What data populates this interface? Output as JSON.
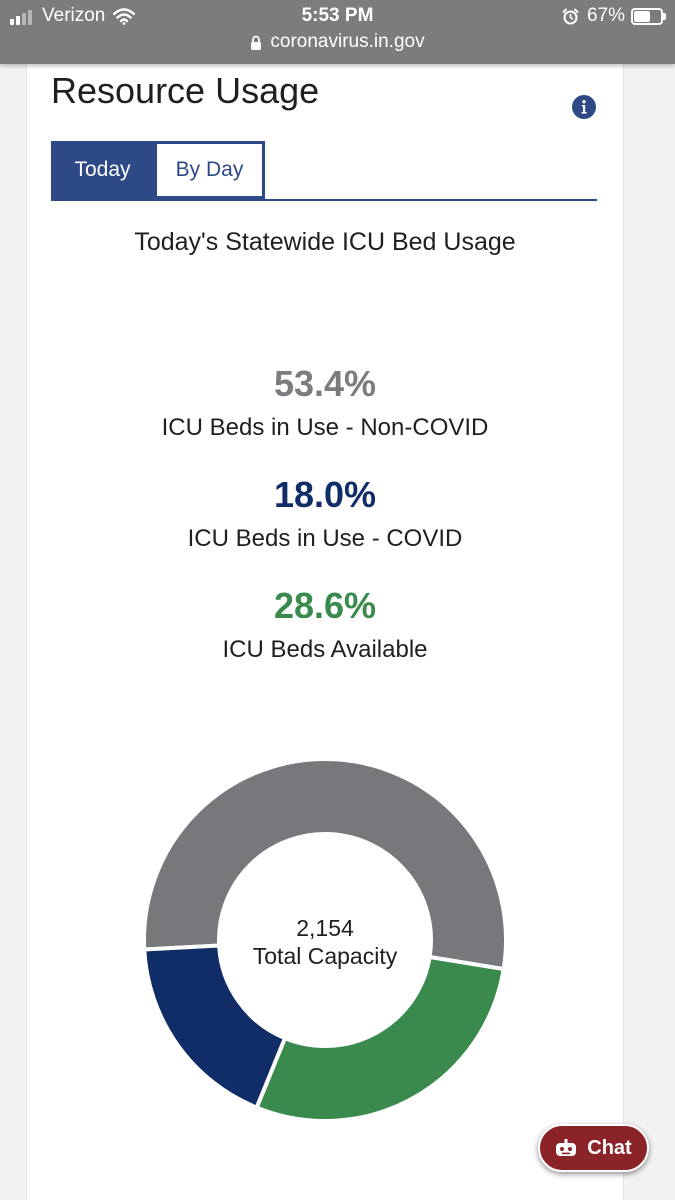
{
  "status_bar": {
    "carrier": "Verizon",
    "time": "5:53 PM",
    "url": "coronavirus.in.gov",
    "battery": "67%",
    "battery_level": 0.67
  },
  "page": {
    "title": "Resource Usage",
    "tabs": [
      {
        "label": "Today",
        "active": true
      },
      {
        "label": "By Day",
        "active": false
      }
    ],
    "subtitle": "Today's Statewide ICU Bed Usage",
    "stats": [
      {
        "value": "53.4%",
        "label": "ICU Beds in Use - Non-COVID",
        "color": "#7b7c80"
      },
      {
        "value": "18.0%",
        "label": "ICU Beds in Use - COVID",
        "color": "#112d68"
      },
      {
        "value": "28.6%",
        "label": "ICU Beds Available",
        "color": "#3a8a4e"
      }
    ],
    "donut_center": {
      "value": "2,154",
      "label": "Total Capacity"
    }
  },
  "chart_data": {
    "type": "pie",
    "categories": [
      "ICU Beds in Use - Non-COVID",
      "ICU Beds in Use - COVID",
      "ICU Beds Available"
    ],
    "values": [
      53.4,
      18.0,
      28.6
    ],
    "colors": [
      "#77787c",
      "#112d68",
      "#3a8a4e"
    ],
    "donut": true
  },
  "chat": {
    "label": "Chat",
    "color": "#8a2428"
  },
  "colors": {
    "accent": "#2d4a86",
    "status_bar": "#7c7c7c"
  },
  "icons": {
    "info": "info-icon",
    "lock": "lock-icon",
    "wifi": "wifi-icon",
    "alarm": "alarm-icon",
    "chat": "chat-bot-icon"
  }
}
